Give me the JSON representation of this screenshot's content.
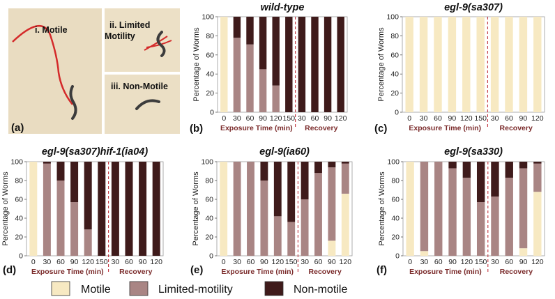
{
  "colors": {
    "motile": "#f7e9c2",
    "limited": "#a98584",
    "nonmotile": "#3f1b1b",
    "exposure_text": "#7a2a2a",
    "divider": "#c0323c",
    "photo_bg": "#e9dcc1",
    "track": "#d42a2a"
  },
  "photo": {
    "label": "(a)",
    "i_label": "i. Motile",
    "ii_label_line1": "ii. Limited",
    "ii_label_line2": "Motility",
    "iii_label": "iii. Non-Motile"
  },
  "legend": {
    "motile": "Motile",
    "limited": "Limited-motility",
    "nonmotile": "Non-motile"
  },
  "chart_data": [
    {
      "panel": "(b)",
      "type": "bar",
      "stacked": true,
      "title": "wild-type",
      "ylabel": "Percentage of Worms",
      "ylim": [
        0,
        100
      ],
      "yticks": [
        0,
        20,
        40,
        60,
        80,
        100
      ],
      "categories": [
        "0",
        "30",
        "60",
        "90",
        "120",
        "150",
        "30",
        "60",
        "90",
        "120"
      ],
      "xlabel_exposure": "Exposure Time (min)",
      "xlabel_recovery": "Recovery",
      "series": [
        {
          "name": "Motile",
          "values": [
            100,
            0,
            0,
            0,
            0,
            0,
            0,
            0,
            0,
            0
          ]
        },
        {
          "name": "Limited-motility",
          "values": [
            0,
            78,
            71,
            45,
            28,
            0,
            0,
            0,
            0,
            0
          ]
        },
        {
          "name": "Non-motile",
          "values": [
            0,
            22,
            29,
            55,
            72,
            100,
            100,
            100,
            100,
            100
          ]
        }
      ]
    },
    {
      "panel": "(c)",
      "type": "bar",
      "stacked": true,
      "title": "egl-9(sa307)",
      "ylabel": "Percentage of Worms",
      "ylim": [
        0,
        100
      ],
      "yticks": [
        0,
        20,
        40,
        60,
        80,
        100
      ],
      "categories": [
        "0",
        "30",
        "60",
        "90",
        "120",
        "150",
        "30",
        "60",
        "90",
        "120"
      ],
      "xlabel_exposure": "Exposure Time (min)",
      "xlabel_recovery": "Recovery",
      "series": [
        {
          "name": "Motile",
          "values": [
            100,
            100,
            100,
            100,
            100,
            100,
            100,
            100,
            100,
            100
          ]
        },
        {
          "name": "Limited-motility",
          "values": [
            0,
            0,
            0,
            0,
            0,
            0,
            0,
            0,
            0,
            0
          ]
        },
        {
          "name": "Non-motile",
          "values": [
            0,
            0,
            0,
            0,
            0,
            0,
            0,
            0,
            0,
            0
          ]
        }
      ]
    },
    {
      "panel": "(d)",
      "type": "bar",
      "stacked": true,
      "title": "egl-9(sa307)hif-1(ia04)",
      "ylabel": "Percentage of Worms",
      "ylim": [
        0,
        100
      ],
      "yticks": [
        0,
        20,
        40,
        60,
        80,
        100
      ],
      "categories": [
        "0",
        "30",
        "60",
        "90",
        "120",
        "150",
        "30",
        "60",
        "90",
        "120"
      ],
      "xlabel_exposure": "Exposure Time (min)",
      "xlabel_recovery": "Recovery",
      "series": [
        {
          "name": "Motile",
          "values": [
            100,
            0,
            0,
            0,
            0,
            0,
            0,
            0,
            0,
            0
          ]
        },
        {
          "name": "Limited-motility",
          "values": [
            0,
            98,
            80,
            57,
            28,
            0,
            0,
            0,
            0,
            0
          ]
        },
        {
          "name": "Non-motile",
          "values": [
            0,
            2,
            20,
            43,
            72,
            100,
            100,
            100,
            100,
            100
          ]
        }
      ]
    },
    {
      "panel": "(e)",
      "type": "bar",
      "stacked": true,
      "title": "egl-9(ia60)",
      "ylabel": "Percentage of Worms",
      "ylim": [
        0,
        100
      ],
      "yticks": [
        0,
        20,
        40,
        60,
        80,
        100
      ],
      "categories": [
        "0",
        "30",
        "60",
        "90",
        "120",
        "150",
        "30",
        "60",
        "90",
        "120"
      ],
      "xlabel_exposure": "Exposure Time (min)",
      "xlabel_recovery": "Recovery",
      "series": [
        {
          "name": "Motile",
          "values": [
            100,
            0,
            0,
            0,
            0,
            0,
            0,
            0,
            16,
            66
          ]
        },
        {
          "name": "Limited-motility",
          "values": [
            0,
            100,
            100,
            80,
            42,
            36,
            60,
            88,
            78,
            32
          ]
        },
        {
          "name": "Non-motile",
          "values": [
            0,
            0,
            0,
            20,
            58,
            64,
            40,
            12,
            6,
            2
          ]
        }
      ]
    },
    {
      "panel": "(f)",
      "type": "bar",
      "stacked": true,
      "title": "egl-9(sa330)",
      "ylabel": "Percentage of Worms",
      "ylim": [
        0,
        100
      ],
      "yticks": [
        0,
        20,
        40,
        60,
        80,
        100
      ],
      "categories": [
        "0",
        "30",
        "60",
        "90",
        "120",
        "150",
        "30",
        "60",
        "90",
        "120"
      ],
      "xlabel_exposure": "Exposure Time (min)",
      "xlabel_recovery": "Recovery",
      "series": [
        {
          "name": "Motile",
          "values": [
            100,
            5,
            0,
            0,
            0,
            0,
            0,
            0,
            8,
            68
          ]
        },
        {
          "name": "Limited-motility",
          "values": [
            0,
            95,
            100,
            93,
            83,
            57,
            63,
            83,
            85,
            30
          ]
        },
        {
          "name": "Non-motile",
          "values": [
            0,
            0,
            0,
            7,
            17,
            43,
            37,
            17,
            7,
            2
          ]
        }
      ]
    }
  ]
}
